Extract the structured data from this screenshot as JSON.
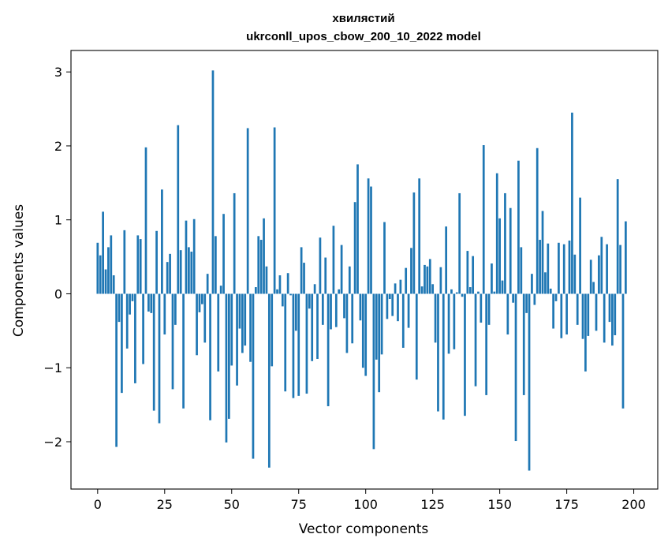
{
  "chart_data": {
    "type": "bar",
    "title_line1": "хвилястий",
    "title_line2": "ukrconll_upos_cbow_200_10_2022 model",
    "xlabel": "Vector components",
    "ylabel": "Components values",
    "xlim": [
      -9.95,
      208.95
    ],
    "ylim": [
      -2.64,
      3.29
    ],
    "xticks": [
      0,
      25,
      50,
      75,
      100,
      125,
      150,
      175,
      200
    ],
    "yticks": [
      -2,
      -1,
      0,
      1,
      2,
      3
    ],
    "ytick_labels": [
      "−2",
      "−1",
      "0",
      "1",
      "2",
      "3"
    ],
    "bar_color": "#1f77b4",
    "grid": false,
    "values": [
      0.69,
      0.52,
      1.11,
      0.33,
      0.63,
      0.79,
      0.25,
      -2.07,
      -0.38,
      -1.34,
      0.86,
      -0.74,
      -0.28,
      -0.1,
      -1.21,
      0.79,
      0.74,
      -0.95,
      1.98,
      -0.24,
      -0.26,
      -1.58,
      0.85,
      -1.75,
      1.41,
      -0.55,
      0.43,
      0.54,
      -1.29,
      -0.42,
      2.28,
      0.59,
      -1.55,
      0.99,
      0.63,
      0.57,
      1.01,
      -0.83,
      -0.25,
      -0.14,
      -0.66,
      0.27,
      -1.71,
      3.02,
      0.78,
      -1.05,
      0.11,
      1.08,
      -2.01,
      -1.69,
      -0.97,
      1.36,
      -1.24,
      -0.47,
      -0.8,
      -0.7,
      2.24,
      -0.92,
      -2.23,
      0.09,
      0.78,
      0.73,
      1.02,
      0.37,
      -2.35,
      -0.98,
      2.25,
      0.06,
      0.25,
      -0.17,
      -1.32,
      0.28,
      -0.02,
      -1.41,
      -0.5,
      -1.38,
      0.63,
      0.42,
      -1.35,
      -0.2,
      -0.91,
      0.13,
      -0.88,
      0.76,
      -0.42,
      0.49,
      -1.52,
      -0.48,
      0.92,
      -0.45,
      0.06,
      0.66,
      -0.33,
      -0.8,
      0.37,
      -0.67,
      1.24,
      1.75,
      -0.36,
      -1.0,
      -1.11,
      1.56,
      1.45,
      -2.1,
      -0.89,
      -1.33,
      -0.82,
      0.97,
      -0.34,
      -0.07,
      -0.3,
      0.14,
      -0.37,
      0.19,
      -0.73,
      0.35,
      -0.46,
      0.62,
      1.37,
      -1.16,
      1.56,
      0.1,
      0.39,
      0.37,
      0.47,
      0.13,
      -0.66,
      -1.59,
      0.36,
      -1.7,
      0.91,
      -0.81,
      0.06,
      -0.75,
      0.02,
      1.36,
      -0.04,
      -1.65,
      0.58,
      0.09,
      0.51,
      -1.25,
      0.03,
      -0.39,
      2.01,
      -1.37,
      -0.42,
      0.41,
      0.03,
      1.63,
      1.02,
      0.18,
      1.36,
      -0.55,
      1.16,
      -0.12,
      -1.99,
      1.8,
      0.63,
      -1.37,
      -0.26,
      -2.39,
      0.27,
      -0.15,
      1.97,
      0.73,
      1.12,
      0.29,
      0.68,
      0.07,
      -0.47,
      -0.1,
      0.69,
      -0.6,
      0.67,
      -0.55,
      0.72,
      2.45,
      0.53,
      -0.42,
      1.3,
      -0.61,
      -1.05,
      -0.57,
      0.46,
      0.16,
      -0.5,
      0.52,
      0.77,
      -0.66,
      0.67,
      -0.38,
      -0.7,
      -0.56,
      1.55,
      0.66,
      -1.55,
      0.98
    ]
  }
}
